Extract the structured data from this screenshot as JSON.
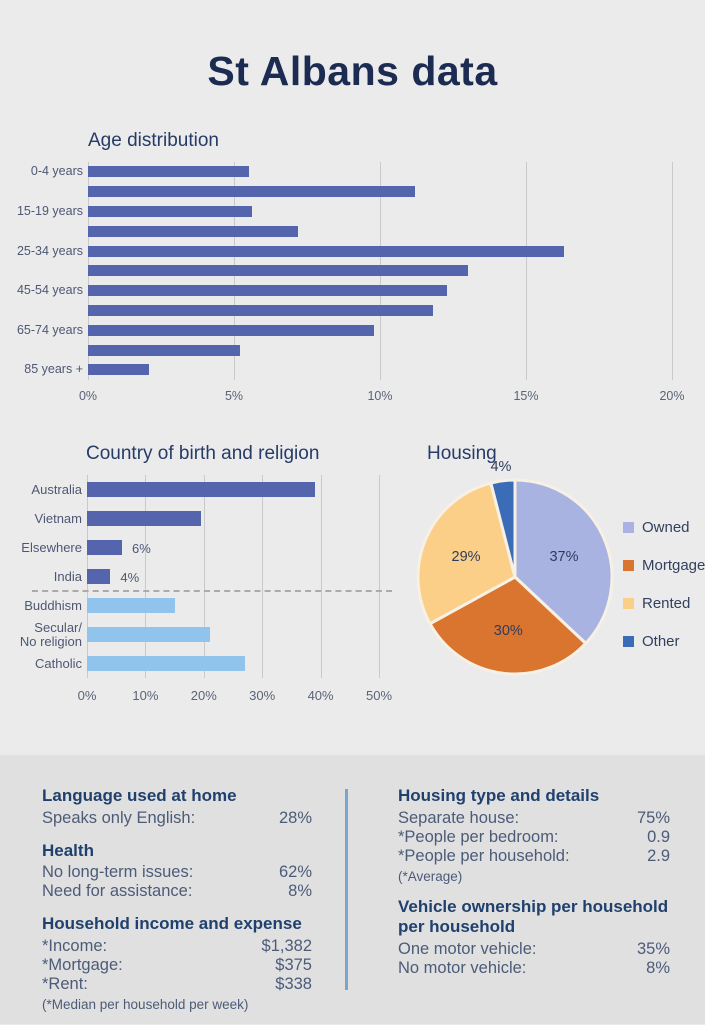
{
  "page": {
    "title": "St Albans data"
  },
  "colors": {
    "background_top": "#ebebec",
    "background_bottom": "#e0e0e1",
    "bar_dark_blue": "#5465ae",
    "bar_light_blue": "#90c4ec",
    "divider_blue": "#7ba6cb",
    "heading_navy": "#263c66",
    "title_navy": "#1c2b52"
  },
  "chart_data": [
    {
      "type": "bar",
      "title": "Age distribution",
      "orientation": "horizontal",
      "categories": [
        "0-4 years",
        "",
        "15-19 years",
        "",
        "25-34 years",
        "",
        "45-54 years",
        "",
        "65-74 years",
        "",
        "85 years +"
      ],
      "values": [
        5.5,
        11.2,
        5.6,
        7.2,
        16.3,
        13.0,
        12.3,
        11.8,
        9.8,
        5.2,
        2.1
      ],
      "bar_color": "#5465ae",
      "tick_labels": [
        "0%",
        "5%",
        "10%",
        "15%",
        "20%"
      ],
      "tick_values": [
        0,
        5,
        10,
        15,
        20
      ],
      "xlim": [
        0,
        20.2
      ],
      "grid": true,
      "legend_position": "none"
    },
    {
      "type": "bar",
      "title": "Country of birth and religion",
      "orientation": "horizontal",
      "categories": [
        "Australia",
        "Vietnam",
        "Elsewhere",
        "India",
        "Buddhism",
        "Secular/\nNo religion",
        "Catholic"
      ],
      "values": [
        39,
        19.5,
        6,
        4,
        15,
        21,
        27
      ],
      "value_labels": [
        "",
        "",
        "6%",
        "4%",
        "",
        "",
        ""
      ],
      "series_colors": [
        "#5465ae",
        "#5465ae",
        "#5465ae",
        "#5465ae",
        "#90c4ec",
        "#90c4ec",
        "#90c4ec"
      ],
      "divider_after_index": 3,
      "tick_labels": [
        "0%",
        "10%",
        "20%",
        "30%",
        "40%",
        "50%"
      ],
      "tick_values": [
        0,
        10,
        20,
        30,
        40,
        50
      ],
      "xlim": [
        0,
        50.6
      ],
      "grid": true,
      "legend_position": "none"
    },
    {
      "type": "pie",
      "title": "Housing",
      "categories": [
        "Owned",
        "Mortgage",
        "Rented",
        "Other"
      ],
      "values": [
        37,
        30,
        29,
        4
      ],
      "slice_labels": [
        "37%",
        "30%",
        "29%",
        "4%"
      ],
      "colors": [
        "#a9b3e1",
        "#d9752f",
        "#fbcf87",
        "#3a6cb8"
      ],
      "stroke_color": "#f7f0e4",
      "start_angle": "top",
      "direction": "clockwise",
      "legend_position": "right"
    }
  ],
  "stats_panel": {
    "left": [
      {
        "heading": "Language used at home",
        "rows": [
          {
            "label": "Speaks only English:",
            "value": "28%"
          }
        ]
      },
      {
        "heading": "Health",
        "rows": [
          {
            "label": "No long-term issues:",
            "value": "62%"
          },
          {
            "label": "Need for assistance:",
            "value": "8%"
          }
        ]
      },
      {
        "heading": "Household income and expense",
        "rows": [
          {
            "label": "*Income:",
            "value": "$1,382"
          },
          {
            "label": "*Mortgage:",
            "value": "$375"
          },
          {
            "label": "*Rent:",
            "value": "$338"
          }
        ],
        "footnote": "(*Median per household per week)"
      }
    ],
    "right": [
      {
        "heading": "Housing type and details",
        "rows": [
          {
            "label": "Separate house:",
            "value": "75%"
          },
          {
            "label": "*People per bedroom:",
            "value": "0.9"
          },
          {
            "label": "*People per household:",
            "value": "2.9"
          }
        ],
        "footnote": "(*Average)"
      },
      {
        "heading": "Vehicle ownership per household per household",
        "rows": [
          {
            "label": "One motor vehicle:",
            "value": "35%"
          },
          {
            "label": "No motor vehicle:",
            "value": "8%"
          }
        ]
      }
    ]
  }
}
